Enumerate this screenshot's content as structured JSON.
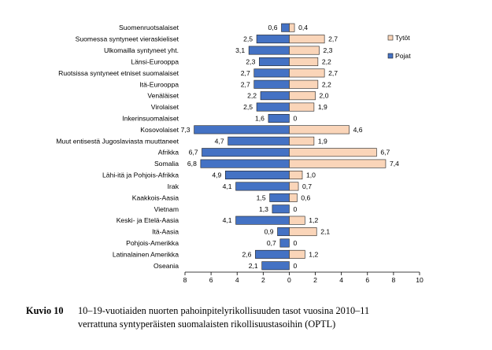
{
  "chart_data": {
    "type": "bar",
    "orientation": "horizontal-diverging",
    "categories": [
      "Suomenruotsalaiset",
      "Suomessa syntyneet vieraskieliset",
      "Ulkomailla syntyneet yht.",
      "Länsi-Eurooppa",
      "Ruotsissa syntyneet etniset suomalaiset",
      "Itä-Eurooppa",
      "Venäläiset",
      "Virolaiset",
      "Inkerinsuomalaiset",
      "Kosovolaiset",
      "Muut entisestä Jugoslaviasta muuttaneet",
      "Afrikka",
      "Somalia",
      "Lähi-itä ja Pohjois-Afrikka",
      "Irak",
      "Kaakkois-Aasia",
      "Vietnam",
      "Keski- ja Etelä-Aasia",
      "Itä-Aasia",
      "Pohjois-Amerikka",
      "Latinalainen Amerikka",
      "Oseania"
    ],
    "series": [
      {
        "name": "Pojat",
        "color": "#4472C4",
        "values": [
          0.6,
          2.5,
          3.1,
          2.3,
          2.7,
          2.7,
          2.2,
          2.5,
          1.6,
          7.3,
          4.7,
          6.7,
          6.8,
          4.9,
          4.1,
          1.5,
          1.3,
          4.1,
          0.9,
          0.7,
          2.6,
          2.1
        ],
        "labels": [
          "0,6",
          "2,5",
          "3,1",
          "2,3",
          "2,7",
          "2,7",
          "2,2",
          "2,5",
          "1,6",
          "7,3",
          "4,7",
          "6,7",
          "6,8",
          "4,9",
          "4,1",
          "1,5",
          "1,3",
          "4,1",
          "0,9",
          "0,7",
          "2,6",
          "2,1"
        ]
      },
      {
        "name": "Tytöt",
        "color": "#FAD5B9",
        "values": [
          0.4,
          2.7,
          2.3,
          2.2,
          2.7,
          2.2,
          2.0,
          1.9,
          0,
          4.6,
          1.9,
          6.7,
          7.4,
          1.0,
          0.7,
          0.6,
          0,
          1.2,
          2.1,
          0,
          1.2,
          0
        ],
        "labels": [
          "0,4",
          "2,7",
          "2,3",
          "2,2",
          "2,7",
          "2,2",
          "2,0",
          "1,9",
          "0",
          "4,6",
          "1,9",
          "6,7",
          "7,4",
          "1,0",
          "0,7",
          "0,6",
          "0",
          "1,2",
          "2,1",
          "0",
          "1,2",
          "0"
        ]
      }
    ],
    "xlim": [
      -8,
      10
    ],
    "x_ticks": [
      -8,
      -6,
      -4,
      -2,
      0,
      2,
      4,
      6,
      8,
      10
    ],
    "x_tick_labels": [
      "8",
      "6",
      "4",
      "2",
      "0",
      "2",
      "4",
      "6",
      "8",
      "10"
    ],
    "legend_position": "right",
    "grid": false
  },
  "caption": {
    "number": "Kuvio 10",
    "line1": "10–19-vuotiaiden nuorten pahoinpitelyrikollisuuden tasot vuosina 2010–11",
    "line2": "verrattuna syntyperäisten suomalaisten rikollisuustasoihin (OPTL)"
  }
}
